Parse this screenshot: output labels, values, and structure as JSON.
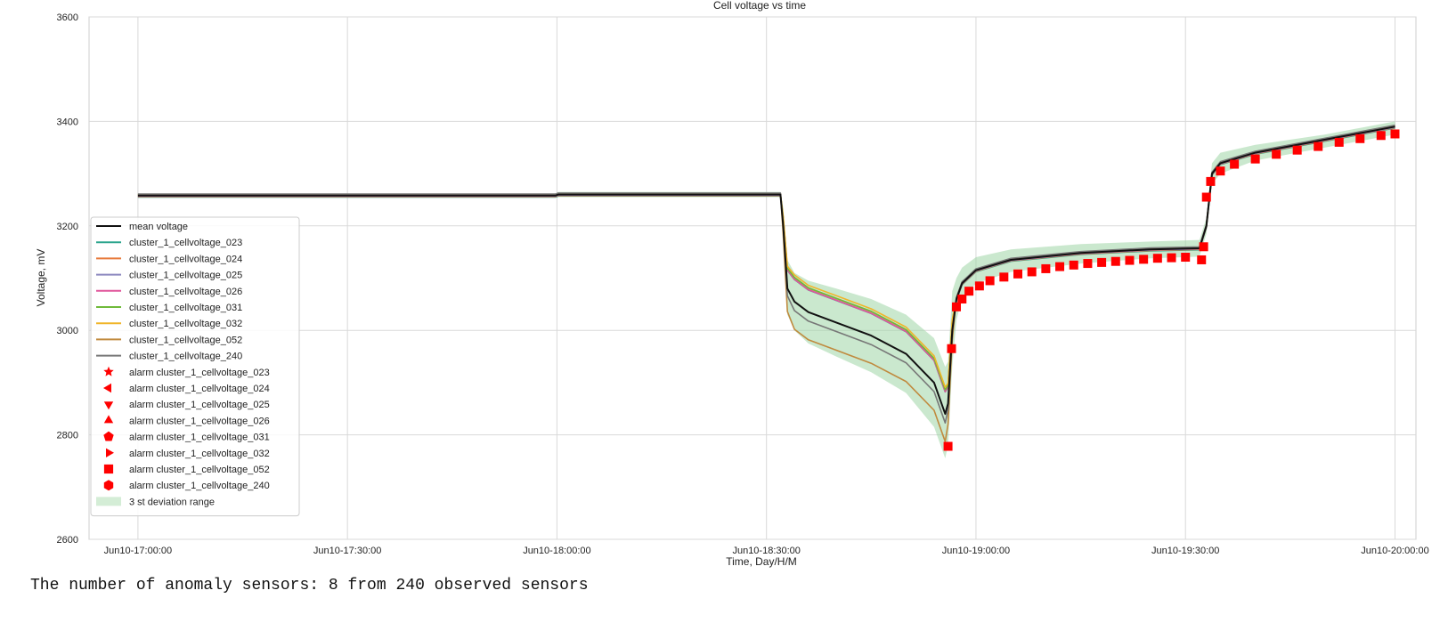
{
  "chart_data": {
    "type": "line",
    "title": "Cell voltage vs time",
    "xlabel": "Time, Day/H/M",
    "ylabel": "Voltage, mV",
    "ylim": [
      2600,
      3600
    ],
    "yticks": [
      2600,
      2800,
      3000,
      3200,
      3400,
      3600
    ],
    "xlim_minutes": [
      -7,
      183
    ],
    "xticks": [
      {
        "t": 0,
        "label": "Jun10-17:00:00"
      },
      {
        "t": 30,
        "label": "Jun10-17:30:00"
      },
      {
        "t": 60,
        "label": "Jun10-18:00:00"
      },
      {
        "t": 90,
        "label": "Jun10-18:30:00"
      },
      {
        "t": 120,
        "label": "Jun10-19:00:00"
      },
      {
        "t": 150,
        "label": "Jun10-19:30:00"
      },
      {
        "t": 180,
        "label": "Jun10-20:00:00"
      }
    ],
    "grid": true,
    "legend_position": "lower-left",
    "mean": {
      "name": "mean voltage",
      "color": "#111111",
      "t": [
        0,
        59.8,
        60.2,
        92,
        92.4,
        93,
        94,
        96,
        100,
        105,
        110,
        114,
        115.6,
        116,
        116.6,
        117.2,
        118,
        120,
        125,
        135,
        145,
        152,
        153,
        153.8,
        155,
        160,
        170,
        180
      ],
      "v": [
        3258,
        3258,
        3260,
        3260,
        3200,
        3080,
        3055,
        3035,
        3015,
        2990,
        2955,
        2900,
        2840,
        2860,
        3000,
        3060,
        3090,
        3115,
        3135,
        3148,
        3155,
        3157,
        3200,
        3300,
        3320,
        3340,
        3365,
        3390
      ]
    },
    "band": {
      "name": "3 st deviation range",
      "color": "#9fd6a5",
      "t": [
        0,
        59.8,
        60.2,
        92,
        92.4,
        93,
        94,
        96,
        100,
        105,
        110,
        114,
        115.6,
        116,
        116.6,
        117.2,
        118,
        120,
        125,
        135,
        145,
        152,
        153,
        153.8,
        155,
        160,
        170,
        180
      ],
      "upper": [
        3262,
        3262,
        3265,
        3265,
        3235,
        3135,
        3110,
        3095,
        3080,
        3060,
        3030,
        2985,
        2930,
        2940,
        3075,
        3100,
        3120,
        3140,
        3155,
        3165,
        3170,
        3173,
        3215,
        3320,
        3340,
        3355,
        3375,
        3400
      ],
      "lower": [
        3254,
        3254,
        3255,
        3255,
        3165,
        3030,
        3000,
        2975,
        2950,
        2920,
        2880,
        2815,
        2755,
        2780,
        2930,
        3020,
        3060,
        3090,
        3112,
        3128,
        3138,
        3141,
        3185,
        3280,
        3300,
        3325,
        3350,
        3375
      ]
    },
    "series": [
      {
        "name": "cluster_1_cellvoltage_023",
        "color": "#2ca58d",
        "offset": 45,
        "marker": "star"
      },
      {
        "name": "cluster_1_cellvoltage_024",
        "color": "#e8793a",
        "offset": 48,
        "marker": "triangle-left"
      },
      {
        "name": "cluster_1_cellvoltage_025",
        "color": "#8c88bf",
        "offset": 44,
        "marker": "triangle-down"
      },
      {
        "name": "cluster_1_cellvoltage_026",
        "color": "#e0559b",
        "offset": 43,
        "marker": "triangle-up"
      },
      {
        "name": "cluster_1_cellvoltage_031",
        "color": "#6fba3a",
        "offset": 46,
        "marker": "pentagon"
      },
      {
        "name": "cluster_1_cellvoltage_032",
        "color": "#f0b52a",
        "offset": 50,
        "marker": "triangle-right"
      },
      {
        "name": "cluster_1_cellvoltage_052",
        "color": "#c08a3e",
        "offset": -55,
        "marker": "square"
      },
      {
        "name": "cluster_1_cellvoltage_240",
        "color": "#777777",
        "offset": -20,
        "marker": "hexagon"
      }
    ],
    "alarm_prefix": "alarm ",
    "alarm_color": "#ff0000",
    "alarm_points": [
      {
        "t": 116.0,
        "v": 2778
      },
      {
        "t": 116.5,
        "v": 2965
      },
      {
        "t": 117.2,
        "v": 3045
      },
      {
        "t": 118.0,
        "v": 3060
      },
      {
        "t": 119.0,
        "v": 3075
      },
      {
        "t": 120.5,
        "v": 3085
      },
      {
        "t": 122,
        "v": 3095
      },
      {
        "t": 124,
        "v": 3102
      },
      {
        "t": 126,
        "v": 3108
      },
      {
        "t": 128,
        "v": 3112
      },
      {
        "t": 130,
        "v": 3118
      },
      {
        "t": 132,
        "v": 3122
      },
      {
        "t": 134,
        "v": 3125
      },
      {
        "t": 136,
        "v": 3128
      },
      {
        "t": 138,
        "v": 3130
      },
      {
        "t": 140,
        "v": 3132
      },
      {
        "t": 142,
        "v": 3134
      },
      {
        "t": 144,
        "v": 3136
      },
      {
        "t": 146,
        "v": 3138
      },
      {
        "t": 148,
        "v": 3139
      },
      {
        "t": 150,
        "v": 3140
      },
      {
        "t": 152.3,
        "v": 3135
      },
      {
        "t": 152.6,
        "v": 3160
      },
      {
        "t": 153.0,
        "v": 3255
      },
      {
        "t": 153.6,
        "v": 3285
      },
      {
        "t": 155,
        "v": 3305
      },
      {
        "t": 157,
        "v": 3318
      },
      {
        "t": 160,
        "v": 3328
      },
      {
        "t": 163,
        "v": 3337
      },
      {
        "t": 166,
        "v": 3345
      },
      {
        "t": 169,
        "v": 3352
      },
      {
        "t": 172,
        "v": 3360
      },
      {
        "t": 175,
        "v": 3367
      },
      {
        "t": 178,
        "v": 3373
      },
      {
        "t": 180,
        "v": 3376
      }
    ]
  },
  "output_text": "The number of anomaly sensors: 8 from 240 observed sensors"
}
